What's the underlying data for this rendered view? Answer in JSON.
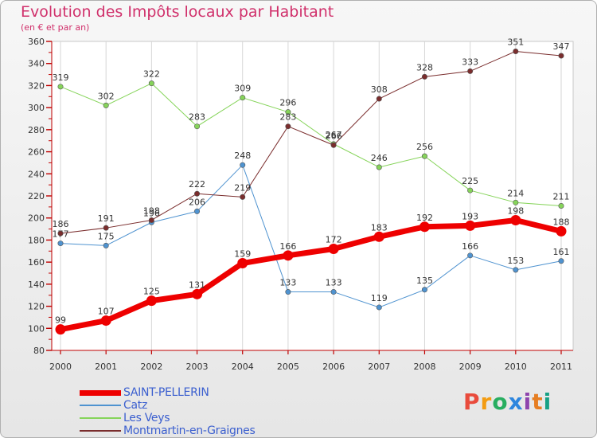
{
  "header": {
    "title": "Evolution des Impôts locaux par Habitant",
    "subtitle": "(en € et par an)"
  },
  "logo": {
    "text": "Proxiti",
    "colors": [
      "#e94b3c",
      "#f39c12",
      "#27ae60",
      "#2e86de",
      "#8e44ad",
      "#e67e22",
      "#16a085"
    ]
  },
  "chart_data": {
    "type": "line",
    "title": "Evolution des Impôts locaux par Habitant",
    "subtitle": "(en € et par an)",
    "xlabel": "",
    "ylabel": "",
    "categories": [
      "2000",
      "2001",
      "2002",
      "2003",
      "2004",
      "2005",
      "2006",
      "2007",
      "2008",
      "2009",
      "2010",
      "2011"
    ],
    "ylim": [
      80,
      360
    ],
    "yticks": [
      "80",
      "100",
      "120",
      "140",
      "160",
      "180",
      "200",
      "220",
      "240",
      "260",
      "280",
      "300",
      "320",
      "340",
      "360"
    ],
    "grid": "vertical",
    "legend": "bottom-left",
    "series": [
      {
        "name": "Catz",
        "color": "#4f93d0",
        "width": 1,
        "values": [
          177,
          175,
          196,
          206,
          248,
          133,
          133,
          119,
          135,
          166,
          153,
          161
        ]
      },
      {
        "name": "Les Veys",
        "color": "#86d45a",
        "width": 1,
        "values": [
          319,
          302,
          322,
          283,
          309,
          296,
          267,
          246,
          256,
          225,
          214,
          211
        ]
      },
      {
        "name": "Montmartin-en-Graignes",
        "color": "#7a2d2d",
        "width": 1,
        "values": [
          186,
          191,
          198,
          222,
          219,
          283,
          266,
          308,
          328,
          333,
          351,
          347
        ]
      },
      {
        "name": "SAINT-PELLERIN",
        "color": "#ee0000",
        "width": 7,
        "values": [
          99,
          107,
          125,
          131,
          159,
          166,
          172,
          183,
          192,
          193,
          198,
          188
        ]
      }
    ],
    "legend_order": [
      "SAINT-PELLERIN",
      "Catz",
      "Les Veys",
      "Montmartin-en-Graignes"
    ]
  }
}
